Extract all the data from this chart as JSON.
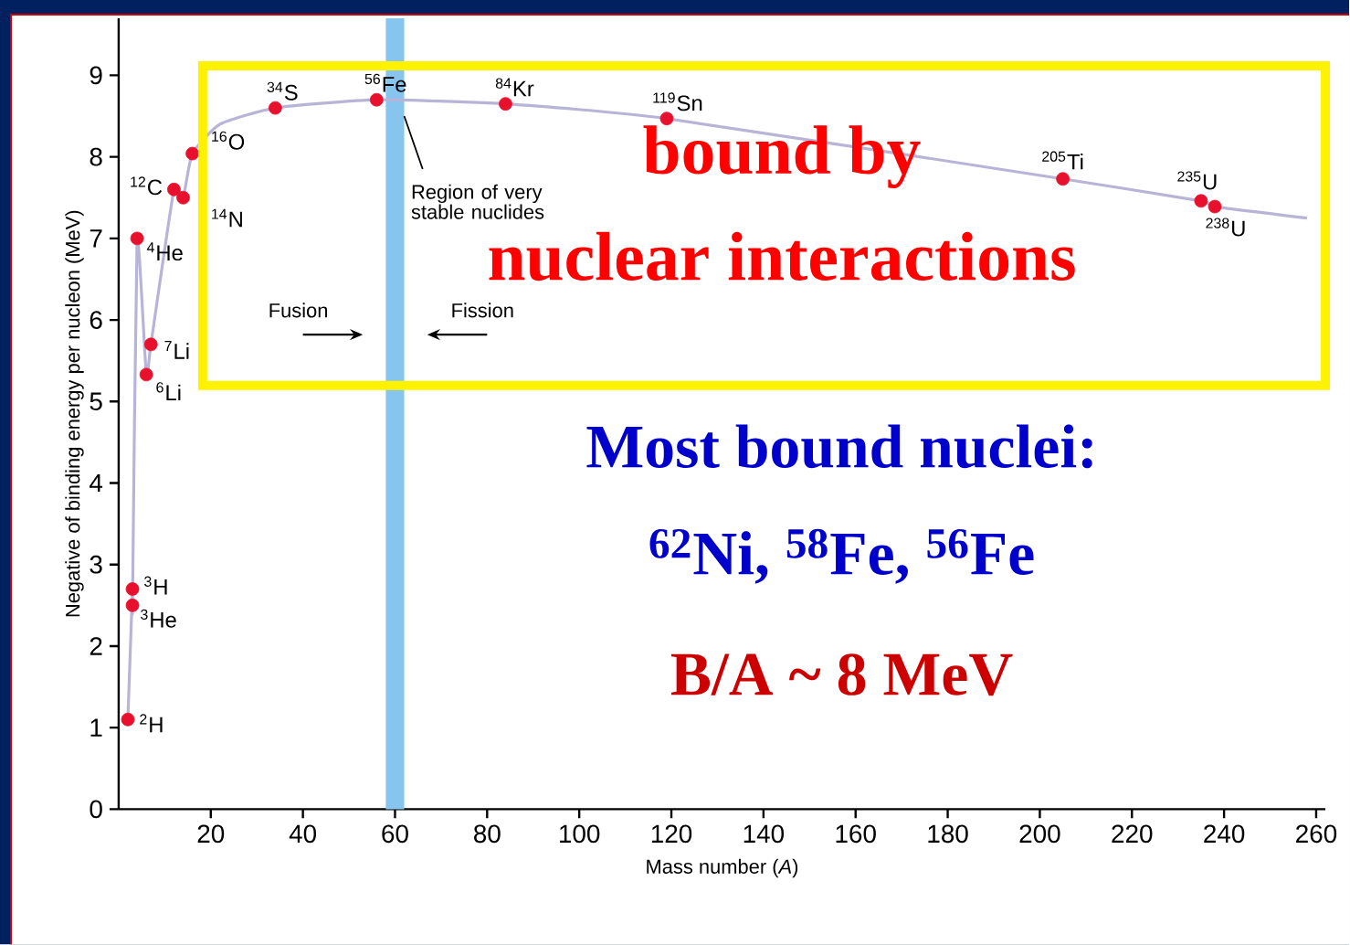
{
  "chart_data": {
    "type": "scatter",
    "xlabel": "Mass number (*A*)",
    "ylabel": "Negative of binding energy per nucleon (MeV)",
    "xlim": [
      0,
      262
    ],
    "ylim": [
      0,
      9.7
    ],
    "xticks": [
      20,
      40,
      60,
      80,
      100,
      120,
      140,
      160,
      180,
      200,
      220,
      240,
      260
    ],
    "yticks": [
      0,
      1,
      2,
      3,
      4,
      5,
      6,
      7,
      8,
      9
    ],
    "series": [
      {
        "type": "line",
        "color": "#b8b4d8",
        "marker": "none",
        "line_style": "solid",
        "x": [
          2,
          3,
          3,
          4,
          6,
          7,
          12,
          14,
          16,
          22,
          34,
          56,
          84,
          119,
          205,
          235,
          238,
          258
        ],
        "values": [
          1.1,
          2.7,
          2.5,
          7.0,
          5.33,
          5.7,
          7.6,
          7.5,
          8.04,
          8.4,
          8.6,
          8.7,
          8.65,
          8.47,
          7.73,
          7.46,
          7.39,
          7.25
        ]
      },
      {
        "color": "#e8112d",
        "marker": "circle",
        "x": [
          2,
          3,
          3,
          4,
          6,
          7,
          12,
          14,
          16,
          34,
          56,
          84,
          119,
          205,
          235,
          238
        ],
        "values": [
          1.1,
          2.7,
          2.5,
          7.0,
          5.33,
          5.7,
          7.6,
          7.5,
          8.04,
          8.6,
          8.7,
          8.65,
          8.47,
          7.73,
          7.46,
          7.39
        ]
      }
    ],
    "bands": [
      {
        "axis": "x",
        "from": 58,
        "to": 62,
        "color": "#87c5ee"
      }
    ],
    "annotations": [
      {
        "text": "$^{2}$H",
        "x": 2,
        "y": 1.1
      },
      {
        "text": "$^{3}$H",
        "x": 3,
        "y": 2.7
      },
      {
        "text": "$^{3}$He",
        "x": 3,
        "y": 2.5
      },
      {
        "text": "$^{4}$He",
        "x": 4,
        "y": 7.0
      },
      {
        "text": "$^{6}$Li",
        "x": 6,
        "y": 5.33
      },
      {
        "text": "$^{7}$Li",
        "x": 7,
        "y": 5.7
      },
      {
        "text": "$^{12}$C",
        "x": 12,
        "y": 7.6
      },
      {
        "text": "$^{14}$N",
        "x": 14,
        "y": 7.5
      },
      {
        "text": "$^{16}$O",
        "x": 16,
        "y": 8.04
      },
      {
        "text": "$^{34}$S",
        "x": 34,
        "y": 8.6
      },
      {
        "text": "$^{56}$Fe",
        "x": 56,
        "y": 8.7
      },
      {
        "text": "$^{84}$Kr",
        "x": 84,
        "y": 8.65
      },
      {
        "text": "$^{119}$Sn",
        "x": 119,
        "y": 8.47
      },
      {
        "text": "$^{205}$Ti",
        "x": 205,
        "y": 7.73
      },
      {
        "text": "$^{235}$U",
        "x": 235,
        "y": 7.46
      },
      {
        "text": "$^{238}$U",
        "x": 238,
        "y": 7.39
      },
      {
        "text": "Region of very stable nuclides",
        "x": 62,
        "y": 8.5
      },
      "Fusion",
      "Fission",
      "bound by",
      "nuclear interactions",
      "Most bound nuclei:",
      "$^{62}$Ni, $^{58}$Fe, $^{56}$Fe",
      "B/A ~ 8 MeV"
    ]
  }
}
